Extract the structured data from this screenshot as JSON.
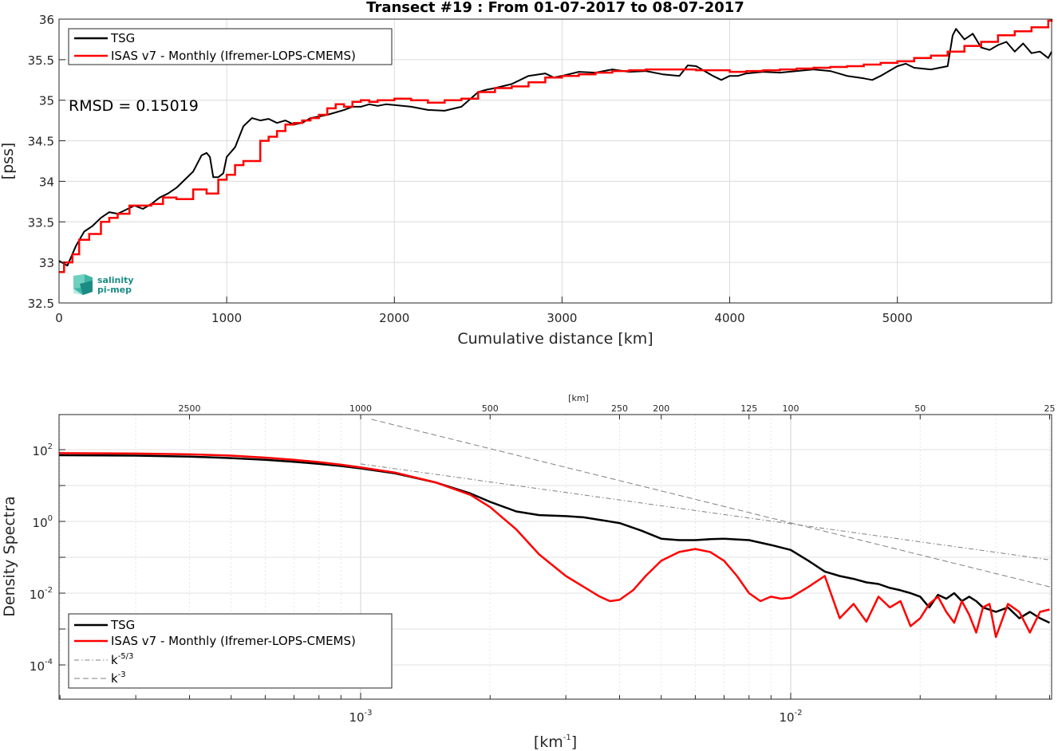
{
  "title": "Transect #19 : From 01-07-2017 to 08-07-2017",
  "top_panel": {
    "xlabel": "Cumulative distance [km]",
    "ylabel": "[pss]",
    "xticks": [
      "0",
      "1000",
      "2000",
      "3000",
      "4000",
      "5000"
    ],
    "yticks": [
      "32.5",
      "33",
      "33.5",
      "34",
      "34.5",
      "35",
      "35.5",
      "36"
    ],
    "rmsd_text": "RMSD = 0.15019",
    "legend": [
      "TSG",
      "ISAS v7 - Monthly (Ifremer-LOPS-CMEMS)"
    ],
    "logo_line1": "salinity",
    "logo_line2": "pi-mep"
  },
  "bottom_panel": {
    "ylabel": "Density Spectra",
    "xlabel_base": "[km",
    "xlabel_exp": "-1",
    "xlabel_end": "]",
    "top_axis_label": "[km]",
    "top_ticks": [
      "2500",
      "1000",
      "500",
      "250",
      "200",
      "125",
      "100",
      "50",
      "25"
    ],
    "bottom_ticks": [
      {
        "base": "10",
        "exp": "-3"
      },
      {
        "base": "10",
        "exp": "-2"
      }
    ],
    "yticks": [
      {
        "base": "10",
        "exp": "2"
      },
      {
        "base": "10",
        "exp": "0"
      },
      {
        "base": "10",
        "exp": "-2"
      },
      {
        "base": "10",
        "exp": "-4"
      }
    ],
    "legend": {
      "tsg": "TSG",
      "isas": "ISAS v7 - Monthly (Ifremer-LOPS-CMEMS)",
      "k53_base": "k",
      "k53_exp": "-5/3",
      "k3_base": "k",
      "k3_exp": "-3"
    }
  },
  "colors": {
    "tsg": "#000000",
    "isas": "#ff0000",
    "ref": "#808080",
    "grid": "#dcdcdc"
  },
  "chart_data": [
    {
      "type": "line",
      "title": "Transect #19 : From 01-07-2017 to 08-07-2017",
      "xlabel": "Cumulative distance [km]",
      "ylabel": "[pss]",
      "xlim": [
        0,
        5920
      ],
      "ylim": [
        32.5,
        36
      ],
      "grid": true,
      "legend_position": "top-left",
      "annotation": "RMSD = 0.15019",
      "series": [
        {
          "name": "TSG",
          "x": [
            0,
            50,
            100,
            150,
            200,
            250,
            300,
            350,
            400,
            450,
            500,
            550,
            600,
            650,
            700,
            750,
            800,
            850,
            880,
            900,
            920,
            950,
            980,
            1000,
            1050,
            1100,
            1150,
            1200,
            1250,
            1300,
            1350,
            1400,
            1450,
            1500,
            1550,
            1600,
            1650,
            1700,
            1750,
            1800,
            1850,
            1900,
            1950,
            2000,
            2100,
            2200,
            2300,
            2400,
            2500,
            2550,
            2600,
            2700,
            2800,
            2900,
            2950,
            3000,
            3100,
            3200,
            3300,
            3400,
            3500,
            3600,
            3700,
            3750,
            3800,
            3900,
            3950,
            4000,
            4050,
            4100,
            4200,
            4300,
            4400,
            4500,
            4600,
            4700,
            4800,
            4850,
            4900,
            5000,
            5050,
            5100,
            5200,
            5300,
            5330,
            5350,
            5400,
            5450,
            5500,
            5550,
            5600,
            5650,
            5700,
            5750,
            5800,
            5850,
            5900,
            5920
          ],
          "y": [
            33.02,
            32.96,
            33.2,
            33.38,
            33.45,
            33.55,
            33.62,
            33.6,
            33.65,
            33.7,
            33.66,
            33.72,
            33.8,
            33.85,
            33.92,
            34.02,
            34.12,
            34.32,
            34.35,
            34.3,
            34.05,
            34.05,
            34.1,
            34.3,
            34.42,
            34.68,
            34.78,
            34.75,
            34.77,
            34.72,
            34.75,
            34.7,
            34.72,
            34.78,
            34.8,
            34.82,
            34.85,
            34.88,
            34.92,
            34.92,
            34.95,
            34.93,
            34.95,
            34.94,
            34.92,
            34.88,
            34.87,
            34.92,
            35.1,
            35.13,
            35.15,
            35.2,
            35.3,
            35.33,
            35.28,
            35.3,
            35.35,
            35.34,
            35.38,
            35.35,
            35.36,
            35.32,
            35.3,
            35.43,
            35.42,
            35.3,
            35.25,
            35.3,
            35.3,
            35.33,
            35.35,
            35.34,
            35.36,
            35.38,
            35.36,
            35.3,
            35.27,
            35.25,
            35.3,
            35.42,
            35.45,
            35.4,
            35.38,
            35.42,
            35.8,
            35.88,
            35.75,
            35.82,
            35.65,
            35.62,
            35.68,
            35.72,
            35.6,
            35.7,
            35.58,
            35.6,
            35.52,
            35.6
          ]
        },
        {
          "name": "ISAS v7 - Monthly (Ifremer-LOPS-CMEMS)",
          "x": [
            0,
            30,
            80,
            120,
            180,
            250,
            300,
            350,
            420,
            500,
            550,
            620,
            700,
            800,
            880,
            950,
            1000,
            1050,
            1100,
            1200,
            1250,
            1300,
            1350,
            1400,
            1450,
            1500,
            1550,
            1600,
            1650,
            1700,
            1750,
            1800,
            1850,
            1900,
            1950,
            2000,
            2100,
            2200,
            2300,
            2400,
            2500,
            2600,
            2700,
            2800,
            2900,
            3000,
            3100,
            3200,
            3300,
            3400,
            3500,
            3600,
            3700,
            3800,
            3900,
            4000,
            4100,
            4200,
            4300,
            4400,
            4500,
            4600,
            4700,
            4800,
            4900,
            5000,
            5100,
            5200,
            5300,
            5400,
            5500,
            5600,
            5700,
            5800,
            5900,
            5920
          ],
          "y": [
            32.88,
            33.0,
            33.1,
            33.28,
            33.35,
            33.5,
            33.55,
            33.6,
            33.7,
            33.7,
            33.72,
            33.8,
            33.78,
            33.9,
            33.85,
            34.02,
            34.08,
            34.2,
            34.25,
            34.5,
            34.55,
            34.62,
            34.7,
            34.72,
            34.75,
            34.78,
            34.82,
            34.9,
            34.95,
            34.92,
            34.98,
            35.0,
            34.98,
            35.0,
            35.0,
            35.02,
            35.0,
            34.97,
            35.0,
            35.02,
            35.1,
            35.15,
            35.17,
            35.22,
            35.28,
            35.3,
            35.32,
            35.34,
            35.36,
            35.37,
            35.38,
            35.38,
            35.38,
            35.37,
            35.37,
            35.35,
            35.36,
            35.37,
            35.38,
            35.39,
            35.4,
            35.41,
            35.42,
            35.44,
            35.46,
            35.48,
            35.52,
            35.55,
            35.6,
            35.67,
            35.72,
            35.8,
            35.85,
            35.9,
            35.98,
            36.0
          ]
        }
      ]
    },
    {
      "type": "line",
      "title": "",
      "xlabel": "[km-1]",
      "ylabel": "Density Spectra",
      "x_scale": "log",
      "y_scale": "log",
      "xlim": [
        0.00019,
        0.04
      ],
      "ylim": [
        1e-05,
        1000
      ],
      "top_axis_km": [
        2500,
        1000,
        500,
        250,
        200,
        125,
        100,
        50,
        25
      ],
      "grid": true,
      "legend_position": "bottom-left",
      "series": [
        {
          "name": "TSG",
          "x": [
            0.00019,
            0.0003,
            0.0004,
            0.0005,
            0.0006,
            0.0007,
            0.0008,
            0.0009,
            0.001,
            0.0012,
            0.0015,
            0.0018,
            0.002,
            0.0023,
            0.0026,
            0.003,
            0.0033,
            0.0036,
            0.004,
            0.0045,
            0.005,
            0.0055,
            0.006,
            0.0065,
            0.007,
            0.008,
            0.009,
            0.01,
            0.011,
            0.012,
            0.013,
            0.014,
            0.015,
            0.016,
            0.017,
            0.018,
            0.019,
            0.02,
            0.021,
            0.022,
            0.023,
            0.024,
            0.025,
            0.026,
            0.027,
            0.028,
            0.03,
            0.032,
            0.034,
            0.036,
            0.038,
            0.04
          ],
          "y": [
            70,
            68,
            64,
            58,
            52,
            46,
            40,
            35,
            30,
            22,
            12,
            6,
            3.5,
            1.9,
            1.5,
            1.4,
            1.3,
            1.1,
            0.9,
            0.55,
            0.33,
            0.3,
            0.3,
            0.32,
            0.33,
            0.3,
            0.22,
            0.16,
            0.08,
            0.04,
            0.03,
            0.025,
            0.02,
            0.018,
            0.014,
            0.012,
            0.01,
            0.008,
            0.004,
            0.009,
            0.007,
            0.01,
            0.006,
            0.008,
            0.006,
            0.004,
            0.003,
            0.004,
            0.002,
            0.003,
            0.002,
            0.0015
          ]
        },
        {
          "name": "ISAS v7 - Monthly (Ifremer-LOPS-CMEMS)",
          "x": [
            0.00019,
            0.0003,
            0.0004,
            0.0005,
            0.0006,
            0.0007,
            0.0008,
            0.0009,
            0.001,
            0.0012,
            0.0015,
            0.0018,
            0.002,
            0.0023,
            0.0026,
            0.003,
            0.0033,
            0.0036,
            0.0038,
            0.004,
            0.0043,
            0.0046,
            0.005,
            0.0055,
            0.006,
            0.0065,
            0.007,
            0.0075,
            0.008,
            0.0085,
            0.009,
            0.0095,
            0.01,
            0.011,
            0.012,
            0.013,
            0.014,
            0.015,
            0.016,
            0.017,
            0.018,
            0.019,
            0.02,
            0.021,
            0.022,
            0.023,
            0.024,
            0.025,
            0.026,
            0.027,
            0.028,
            0.029,
            0.03,
            0.032,
            0.034,
            0.036,
            0.038,
            0.04
          ],
          "y": [
            80,
            78,
            74,
            68,
            60,
            52,
            45,
            38,
            32,
            23,
            12,
            5.5,
            2.5,
            0.6,
            0.12,
            0.03,
            0.015,
            0.008,
            0.006,
            0.0065,
            0.012,
            0.03,
            0.08,
            0.14,
            0.17,
            0.14,
            0.08,
            0.03,
            0.01,
            0.006,
            0.008,
            0.007,
            0.0075,
            0.015,
            0.03,
            0.002,
            0.005,
            0.0016,
            0.008,
            0.004,
            0.006,
            0.0012,
            0.002,
            0.005,
            0.008,
            0.003,
            0.0015,
            0.006,
            0.0025,
            0.0008,
            0.004,
            0.005,
            0.0006,
            0.005,
            0.003,
            0.0008,
            0.003,
            0.0035
          ]
        },
        {
          "name": "k-5/3",
          "x": [
            0.001,
            0.04
          ],
          "y": [
            40,
            0.085
          ]
        },
        {
          "name": "k-3",
          "x": [
            0.00106,
            0.04
          ],
          "y": [
            700,
            0.015
          ]
        }
      ]
    }
  ]
}
